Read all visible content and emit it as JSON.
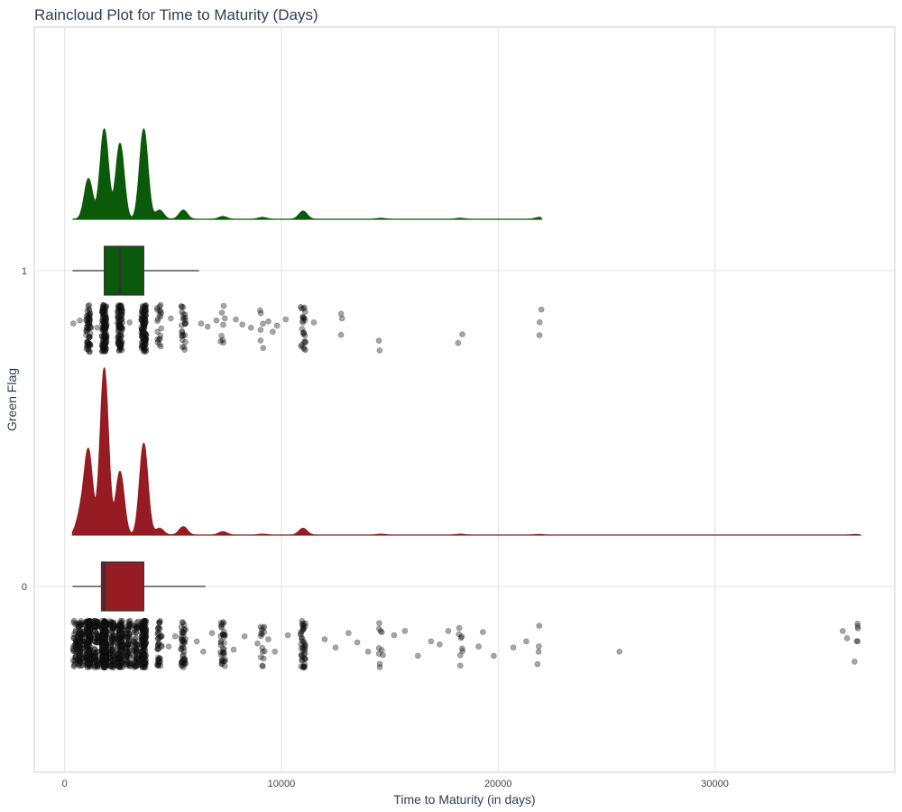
{
  "chart_data": {
    "type": "raincloud",
    "title": "Raincloud Plot for Time to Maturity (Days)",
    "xlabel": "Time to Maturity (in days)",
    "ylabel": "Green Flag",
    "xlim": [
      -1400,
      38300
    ],
    "x_ticks": [
      0,
      10000,
      20000,
      30000
    ],
    "grid": true,
    "groups": [
      {
        "name": "1",
        "color": "#0b5a0b",
        "box": {
          "min": 365,
          "q1": 1830,
          "median": 2555,
          "q3": 3650,
          "max": 6200
        },
        "density_peaks": [
          {
            "x": 1100,
            "h": 0.45
          },
          {
            "x": 1830,
            "h": 1.0
          },
          {
            "x": 2555,
            "h": 0.44
          },
          {
            "x": 2555,
            "h": 0.4
          },
          {
            "x": 3650,
            "h": 1.0
          },
          {
            "x": 4380,
            "h": 0.1
          },
          {
            "x": 5475,
            "h": 0.1
          },
          {
            "x": 7300,
            "h": 0.03
          },
          {
            "x": 9125,
            "h": 0.02
          },
          {
            "x": 11000,
            "h": 0.09
          },
          {
            "x": 14600,
            "h": 0.01
          },
          {
            "x": 18250,
            "h": 0.01
          },
          {
            "x": 21900,
            "h": 0.02
          }
        ],
        "points": [
          {
            "x": 1100,
            "n": 60
          },
          {
            "x": 1830,
            "n": 120
          },
          {
            "x": 2555,
            "n": 90
          },
          {
            "x": 3650,
            "n": 110
          },
          {
            "x": 4380,
            "n": 20
          },
          {
            "x": 5475,
            "n": 25
          },
          {
            "x": 7300,
            "n": 8
          },
          {
            "x": 9125,
            "n": 6
          },
          {
            "x": 11000,
            "n": 25
          },
          {
            "x": 12775,
            "n": 2
          },
          {
            "x": 14600,
            "n": 2
          },
          {
            "x": 18250,
            "n": 2
          },
          {
            "x": 21900,
            "n": 3
          }
        ],
        "scatter_points": [
          [
            400,
            0.82
          ],
          [
            700,
            0.85
          ],
          [
            1500,
            0.78
          ],
          [
            3000,
            0.83
          ],
          [
            4900,
            0.87
          ],
          [
            6300,
            0.82
          ],
          [
            6600,
            0.79
          ],
          [
            7000,
            0.85
          ],
          [
            7900,
            0.86
          ],
          [
            8200,
            0.81
          ],
          [
            8600,
            0.78
          ],
          [
            9400,
            0.84
          ],
          [
            9800,
            0.8
          ],
          [
            10200,
            0.86
          ],
          [
            9600,
            0.74
          ],
          [
            12800,
            0.87
          ],
          [
            11500,
            0.83
          ]
        ]
      },
      {
        "name": "0",
        "color": "#961b23",
        "box": {
          "min": 365,
          "q1": 1700,
          "median": 1830,
          "q3": 3650,
          "max": 6500
        },
        "density_peaks": [
          {
            "x": 730,
            "h": 0.12
          },
          {
            "x": 1100,
            "h": 0.5
          },
          {
            "x": 1830,
            "h": 1.0
          },
          {
            "x": 2555,
            "h": 0.38
          },
          {
            "x": 3650,
            "h": 0.55
          },
          {
            "x": 4380,
            "h": 0.04
          },
          {
            "x": 5475,
            "h": 0.05
          },
          {
            "x": 7300,
            "h": 0.02
          },
          {
            "x": 9125,
            "h": 0.005
          },
          {
            "x": 11000,
            "h": 0.04
          },
          {
            "x": 14600,
            "h": 0.005
          },
          {
            "x": 18250,
            "h": 0.005
          },
          {
            "x": 21900,
            "h": 0.003
          },
          {
            "x": 36500,
            "h": 0.003
          }
        ],
        "points": [
          {
            "x": 500,
            "n": 40
          },
          {
            "x": 730,
            "n": 80
          },
          {
            "x": 1100,
            "n": 160
          },
          {
            "x": 1460,
            "n": 80
          },
          {
            "x": 1830,
            "n": 240
          },
          {
            "x": 2190,
            "n": 80
          },
          {
            "x": 2555,
            "n": 130
          },
          {
            "x": 2920,
            "n": 70
          },
          {
            "x": 3285,
            "n": 60
          },
          {
            "x": 3650,
            "n": 150
          },
          {
            "x": 4380,
            "n": 40
          },
          {
            "x": 5475,
            "n": 45
          },
          {
            "x": 7300,
            "n": 35
          },
          {
            "x": 9125,
            "n": 15
          },
          {
            "x": 11000,
            "n": 45
          },
          {
            "x": 14600,
            "n": 10
          },
          {
            "x": 18250,
            "n": 8
          },
          {
            "x": 21900,
            "n": 4
          },
          {
            "x": 36500,
            "n": 6
          }
        ],
        "scatter_points": [
          [
            4800,
            0.75
          ],
          [
            5100,
            0.85
          ],
          [
            6100,
            0.8
          ],
          [
            6400,
            0.7
          ],
          [
            6800,
            0.88
          ],
          [
            7800,
            0.72
          ],
          [
            8300,
            0.85
          ],
          [
            8900,
            0.78
          ],
          [
            9400,
            0.82
          ],
          [
            9700,
            0.7
          ],
          [
            10300,
            0.86
          ],
          [
            12000,
            0.82
          ],
          [
            12500,
            0.74
          ],
          [
            13100,
            0.88
          ],
          [
            13500,
            0.79
          ],
          [
            14000,
            0.7
          ],
          [
            15200,
            0.86
          ],
          [
            15700,
            0.9
          ],
          [
            16300,
            0.66
          ],
          [
            16900,
            0.8
          ],
          [
            17300,
            0.77
          ],
          [
            17700,
            0.9
          ],
          [
            19100,
            0.75
          ],
          [
            19800,
            0.66
          ],
          [
            19300,
            0.89
          ],
          [
            20700,
            0.74
          ],
          [
            21300,
            0.8
          ],
          [
            25600,
            0.7
          ],
          [
            35900,
            0.9
          ],
          [
            36100,
            0.83
          ]
        ]
      }
    ]
  }
}
